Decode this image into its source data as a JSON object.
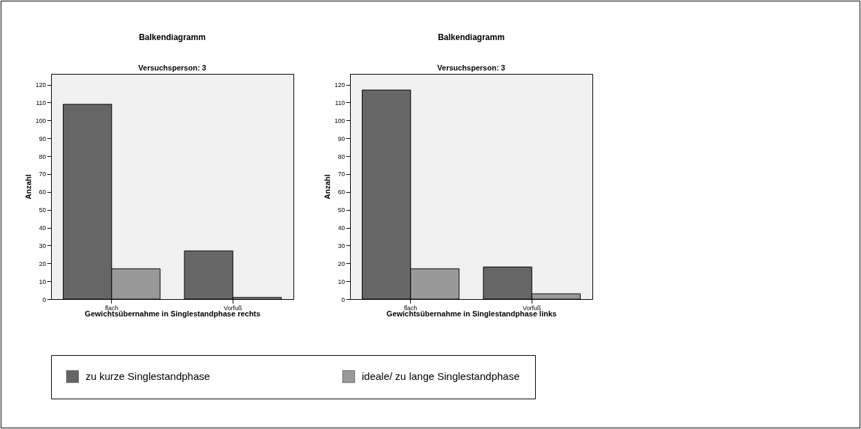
{
  "chart_data": [
    {
      "type": "bar",
      "title": "Balkendiagramm",
      "subtitle": "Versuchsperson: 3",
      "xlabel": "Gewichtsübernahme in Singlestandphase rechts",
      "ylabel": "Anzahl",
      "categories": [
        "flach",
        "Vorfuß"
      ],
      "series": [
        {
          "name": "zu kurze Singlestandphase",
          "color": "#666666",
          "values": [
            109,
            27
          ]
        },
        {
          "name": "ideale/ zu lange Singlestandphase",
          "color": "#999999",
          "values": [
            17,
            1
          ]
        }
      ],
      "ylim": [
        0,
        126
      ],
      "yticks": [
        0,
        10,
        20,
        30,
        40,
        50,
        60,
        70,
        80,
        90,
        100,
        110,
        120
      ],
      "legend": "bottom",
      "grid": false
    },
    {
      "type": "bar",
      "title": "Balkendiagramm",
      "subtitle": "Versuchsperson: 3",
      "xlabel": "Gewichtsübernahme in Singlestandphase links",
      "ylabel": "Anzahl",
      "categories": [
        "flach",
        "Vorfuß"
      ],
      "series": [
        {
          "color": "#666666",
          "values": [
            117,
            18
          ]
        },
        {
          "color": "#999999",
          "values": [
            17,
            3
          ]
        }
      ],
      "ylim": [
        0,
        126
      ],
      "yticks": [
        0,
        10,
        20,
        30,
        40,
        50,
        60,
        70,
        80,
        90,
        100,
        110,
        120
      ],
      "grid": false
    }
  ]
}
